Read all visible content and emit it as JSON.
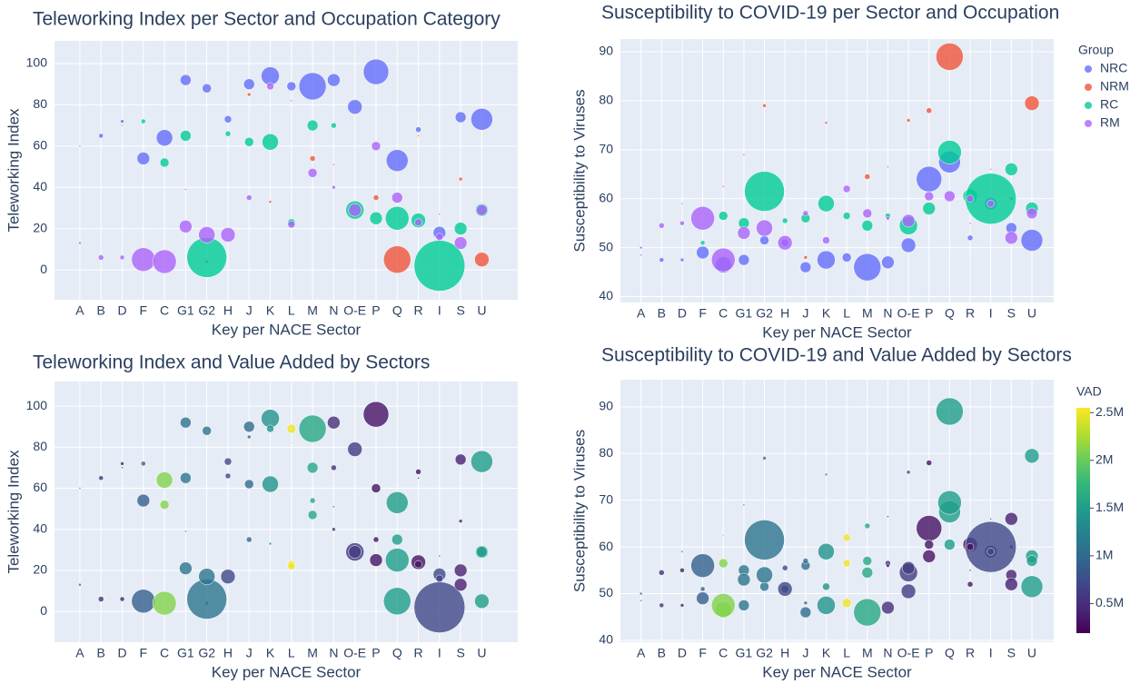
{
  "chart_data": [
    {
      "type": "scatter",
      "title": "Teleworking Index per Sector and Occupation Category",
      "x_label": "Key per NACE Sector",
      "y_label": "Teleworking Index",
      "categories": [
        "A",
        "B",
        "D",
        "F",
        "C",
        "G1",
        "G2",
        "H",
        "J",
        "K",
        "L",
        "M",
        "N",
        "O-E",
        "P",
        "Q",
        "R",
        "I",
        "S",
        "U"
      ],
      "ylim": [
        -14.5,
        111
      ],
      "yticks": [
        0,
        20,
        40,
        60,
        80,
        100
      ],
      "grid": true,
      "series": [
        {
          "name": "NRC",
          "color": "#636efa",
          "x": [
            "A",
            "B",
            "D",
            "F",
            "C",
            "G1",
            "G2",
            "H",
            "J",
            "K",
            "L",
            "M",
            "N",
            "O-E",
            "P",
            "Q",
            "R",
            "I",
            "S",
            "U"
          ],
          "values": [
            60,
            65,
            72,
            54,
            64,
            92,
            88,
            73,
            90,
            94,
            89,
            89,
            92,
            79,
            96,
            53,
            68,
            18,
            74,
            73
          ],
          "sizes": [
            1,
            2.5,
            2,
            7,
            9,
            6,
            5,
            4,
            6,
            10,
            5,
            15,
            7,
            8,
            14,
            12,
            3,
            7,
            6,
            12
          ]
        },
        {
          "name": "NRM",
          "color": "#ef553b",
          "x": [
            "G1",
            "G2",
            "J",
            "K",
            "L",
            "M",
            "N",
            "P",
            "Q",
            "R",
            "I",
            "S",
            "U"
          ],
          "values": [
            39,
            4,
            85,
            33,
            82,
            54,
            51,
            35,
            5,
            65,
            27,
            44,
            5
          ],
          "sizes": [
            1,
            2,
            2,
            1.5,
            1,
            3,
            1,
            3,
            15,
            1,
            1,
            2,
            8
          ]
        },
        {
          "name": "RC",
          "color": "#00cc96",
          "x": [
            "D",
            "F",
            "C",
            "G1",
            "G2",
            "H",
            "J",
            "K",
            "L",
            "M",
            "N",
            "O-E",
            "P",
            "Q",
            "R",
            "I",
            "S",
            "U"
          ],
          "values": [
            70,
            72,
            52,
            65,
            6,
            66,
            62,
            62,
            23,
            70,
            70,
            29,
            25,
            25,
            24,
            2,
            20,
            29
          ],
          "sizes": [
            1,
            2.5,
            5,
            6,
            22,
            3,
            5,
            9,
            4,
            6,
            3,
            10,
            7,
            13,
            8,
            28,
            7,
            7
          ]
        },
        {
          "name": "RM",
          "color": "#ab63fa",
          "x": [
            "A",
            "B",
            "D",
            "F",
            "C",
            "G1",
            "G2",
            "H",
            "J",
            "K",
            "L",
            "M",
            "N",
            "O-E",
            "P",
            "Q",
            "R",
            "I",
            "S",
            "U"
          ],
          "values": [
            13,
            6,
            6,
            5,
            4,
            21,
            17,
            17,
            35,
            89,
            22,
            47,
            40,
            29,
            60,
            35,
            23,
            16,
            13,
            29
          ],
          "sizes": [
            1.5,
            3,
            2.5,
            13,
            13,
            7,
            9,
            8,
            3,
            4,
            4,
            5,
            2,
            7,
            5,
            6,
            4,
            4,
            7,
            6
          ]
        }
      ]
    },
    {
      "type": "scatter",
      "title": "Susceptibility to COVID-19 per Sector and Occupation",
      "x_label": "Key per NACE Sector",
      "y_label": "Susceptibility to Viruses",
      "categories": [
        "A",
        "B",
        "D",
        "F",
        "C",
        "G1",
        "G2",
        "H",
        "J",
        "K",
        "L",
        "M",
        "N",
        "O-E",
        "P",
        "Q",
        "R",
        "I",
        "S",
        "U"
      ],
      "ylim": [
        38.8,
        92.6
      ],
      "yticks": [
        40,
        50,
        60,
        70,
        80,
        90
      ],
      "grid": true,
      "legend_title": "Group",
      "legend": "right",
      "series": [
        {
          "name": "NRC",
          "color": "#636efa",
          "x": [
            "A",
            "B",
            "D",
            "F",
            "C",
            "G1",
            "G2",
            "H",
            "J",
            "K",
            "L",
            "M",
            "N",
            "O-E",
            "P",
            "Q",
            "R",
            "I",
            "S",
            "U"
          ],
          "values": [
            48.5,
            47.5,
            47.5,
            49,
            46.5,
            47.5,
            51.5,
            51,
            46,
            47.5,
            48,
            46,
            47,
            50.5,
            64,
            67.5,
            52,
            59,
            54,
            51.5
          ],
          "sizes": [
            1,
            2.5,
            2,
            7,
            9,
            6,
            5,
            4,
            6,
            10,
            5,
            15,
            7,
            8,
            14,
            12,
            3,
            7,
            6,
            12
          ]
        },
        {
          "name": "NRM",
          "color": "#ef553b",
          "x": [
            "C",
            "G1",
            "G2",
            "J",
            "K",
            "M",
            "N",
            "O-E",
            "P",
            "Q",
            "R",
            "I",
            "S",
            "U"
          ],
          "values": [
            62.5,
            69,
            79,
            48,
            75.5,
            64.5,
            66.5,
            76,
            78,
            89,
            55,
            66,
            60,
            79.5
          ],
          "sizes": [
            1,
            1,
            2,
            2,
            1.5,
            3,
            1,
            2,
            3,
            15,
            1,
            1,
            2,
            8
          ]
        },
        {
          "name": "RC",
          "color": "#00cc96",
          "x": [
            "D",
            "F",
            "C",
            "G1",
            "G2",
            "H",
            "J",
            "K",
            "L",
            "M",
            "N",
            "O-E",
            "P",
            "Q",
            "R",
            "I",
            "S",
            "U"
          ],
          "values": [
            59,
            51,
            56.5,
            55,
            61.5,
            55.5,
            56,
            59,
            56.5,
            54.5,
            56.5,
            54.5,
            58,
            69.5,
            60.5,
            60,
            66,
            58
          ],
          "sizes": [
            1,
            2.5,
            5,
            6,
            22,
            3,
            5,
            9,
            4,
            6,
            3,
            10,
            7,
            13,
            8,
            28,
            7,
            7
          ]
        },
        {
          "name": "RM",
          "color": "#ab63fa",
          "x": [
            "A",
            "B",
            "D",
            "F",
            "C",
            "G1",
            "G2",
            "H",
            "J",
            "K",
            "L",
            "M",
            "N",
            "O-E",
            "P",
            "Q",
            "R",
            "I",
            "S",
            "U"
          ],
          "values": [
            50,
            54.5,
            55,
            56,
            47.5,
            53,
            54,
            51,
            57,
            51.5,
            62,
            57,
            56,
            55.5,
            60.5,
            60.5,
            60,
            59,
            52,
            57
          ],
          "sizes": [
            1.5,
            3,
            2.5,
            13,
            13,
            7,
            9,
            8,
            3,
            4,
            4,
            5,
            2,
            7,
            5,
            6,
            4,
            4,
            7,
            6
          ]
        }
      ]
    },
    {
      "type": "scatter",
      "title": "Teleworking Index and Value Added by Sectors",
      "x_label": "Key per NACE Sector",
      "y_label": "Teleworking Index",
      "categories": [
        "A",
        "B",
        "D",
        "F",
        "C",
        "G1",
        "G2",
        "H",
        "J",
        "K",
        "L",
        "M",
        "N",
        "O-E",
        "P",
        "Q",
        "R",
        "I",
        "S",
        "U"
      ],
      "ylim": [
        -15,
        112
      ],
      "yticks": [
        0,
        20,
        40,
        60,
        80,
        100
      ],
      "grid": true,
      "colorscale": "viridis",
      "x": [
        "A",
        "B",
        "D",
        "F",
        "C",
        "G1",
        "G2",
        "H",
        "J",
        "K",
        "L",
        "M",
        "N",
        "O-E",
        "P",
        "Q",
        "R",
        "I",
        "S",
        "U",
        "G1",
        "G2",
        "J",
        "K",
        "L",
        "M",
        "N",
        "P",
        "Q",
        "R",
        "I",
        "S",
        "U",
        "D",
        "F",
        "C",
        "G1",
        "G2",
        "H",
        "J",
        "K",
        "L",
        "M",
        "N",
        "O-E",
        "P",
        "Q",
        "R",
        "I",
        "S",
        "U",
        "A",
        "B",
        "D",
        "F",
        "C",
        "G1",
        "G2",
        "H",
        "J",
        "K",
        "L",
        "M",
        "N",
        "O-E",
        "P",
        "Q",
        "R",
        "I",
        "S",
        "U"
      ],
      "values": [
        60,
        65,
        72,
        54,
        64,
        92,
        88,
        73,
        90,
        94,
        89,
        89,
        92,
        79,
        96,
        53,
        68,
        18,
        74,
        73,
        39,
        4,
        85,
        33,
        82,
        54,
        51,
        35,
        5,
        65,
        27,
        44,
        5,
        70,
        72,
        52,
        65,
        6,
        66,
        62,
        62,
        23,
        70,
        70,
        29,
        25,
        25,
        24,
        2,
        20,
        29,
        13,
        6,
        6,
        5,
        4,
        21,
        17,
        17,
        35,
        89,
        22,
        47,
        40,
        29,
        60,
        35,
        23,
        16,
        13,
        29
      ],
      "sizes": [
        1,
        2.5,
        2,
        7,
        9,
        6,
        5,
        4,
        6,
        10,
        5,
        15,
        7,
        8,
        14,
        12,
        3,
        7,
        6,
        12,
        1,
        2,
        2,
        1.5,
        1,
        3,
        1,
        3,
        15,
        1,
        1,
        2,
        8,
        1,
        2.5,
        5,
        6,
        22,
        3,
        5,
        9,
        4,
        6,
        3,
        10,
        7,
        13,
        8,
        28,
        7,
        7,
        1.5,
        3,
        2.5,
        13,
        13,
        7,
        9,
        8,
        3,
        4,
        4,
        5,
        2,
        7,
        5,
        6,
        4,
        4,
        7,
        6
      ],
      "color_values": [
        1000000,
        500000,
        400000,
        900000,
        2100000,
        1100000,
        1100000,
        700000,
        1000000,
        1400000,
        2500000,
        1600000,
        500000,
        600000,
        300000,
        1500000,
        300000,
        700000,
        400000,
        1500000,
        1100000,
        1100000,
        1000000,
        1400000,
        2500000,
        1600000,
        500000,
        300000,
        1500000,
        300000,
        700000,
        400000,
        1500000,
        400000,
        900000,
        2100000,
        1100000,
        1100000,
        700000,
        1000000,
        1400000,
        2500000,
        1600000,
        500000,
        600000,
        300000,
        1500000,
        300000,
        700000,
        400000,
        1500000,
        1000000,
        500000,
        400000,
        900000,
        2100000,
        1100000,
        1100000,
        700000,
        1000000,
        1400000,
        2500000,
        1600000,
        500000,
        600000,
        300000,
        1500000,
        300000,
        700000,
        400000,
        1500000
      ]
    },
    {
      "type": "scatter",
      "title": "Susceptibility to COVID-19 and Value Added by Sectors",
      "x_label": "Key per NACE Sector",
      "y_label": "Susceptibility to Viruses",
      "categories": [
        "A",
        "B",
        "D",
        "F",
        "C",
        "G1",
        "G2",
        "H",
        "J",
        "K",
        "L",
        "M",
        "N",
        "O-E",
        "P",
        "Q",
        "R",
        "I",
        "S",
        "U"
      ],
      "ylim": [
        39.6,
        95.8
      ],
      "yticks": [
        40,
        50,
        60,
        70,
        80,
        90
      ],
      "grid": true,
      "colorscale": "viridis",
      "colorbar": {
        "title": "VAD",
        "clim": [
          190000,
          2550000
        ],
        "ticks": [
          {
            "value": 500000,
            "label": "0.5M"
          },
          {
            "value": 1000000,
            "label": "1M"
          },
          {
            "value": 1500000,
            "label": "1.5M"
          },
          {
            "value": 2000000,
            "label": "2M"
          },
          {
            "value": 2500000,
            "label": "2.5M"
          }
        ]
      },
      "x": [
        "A",
        "B",
        "D",
        "F",
        "C",
        "G1",
        "G2",
        "H",
        "J",
        "K",
        "L",
        "M",
        "N",
        "O-E",
        "P",
        "Q",
        "R",
        "I",
        "S",
        "U",
        "C",
        "G1",
        "G2",
        "J",
        "K",
        "M",
        "N",
        "O-E",
        "P",
        "Q",
        "R",
        "I",
        "S",
        "U",
        "D",
        "F",
        "C",
        "G1",
        "G2",
        "H",
        "J",
        "K",
        "L",
        "M",
        "N",
        "O-E",
        "P",
        "Q",
        "R",
        "I",
        "S",
        "U",
        "A",
        "B",
        "D",
        "F",
        "C",
        "G1",
        "G2",
        "H",
        "J",
        "K",
        "L",
        "M",
        "N",
        "O-E",
        "P",
        "Q",
        "R",
        "I",
        "S",
        "U"
      ],
      "values": [
        48.5,
        47.5,
        47.5,
        49,
        46.5,
        47.5,
        51.5,
        51,
        46,
        47.5,
        48,
        46,
        47,
        50.5,
        64,
        67.5,
        52,
        59,
        54,
        51.5,
        62.5,
        69,
        79,
        48,
        75.5,
        64.5,
        66.5,
        76,
        78,
        89,
        55,
        66,
        60,
        79.5,
        59,
        51,
        56.5,
        55,
        61.5,
        55.5,
        56,
        59,
        56.5,
        54.5,
        56.5,
        54.5,
        58,
        69.5,
        60.5,
        60,
        66,
        58,
        50,
        54.5,
        55,
        56,
        47.5,
        53,
        54,
        51,
        57,
        51.5,
        62,
        57,
        56,
        55.5,
        60.5,
        60.5,
        60,
        59,
        52,
        57
      ],
      "sizes": [
        1,
        2.5,
        2,
        7,
        9,
        6,
        5,
        4,
        6,
        10,
        5,
        15,
        7,
        8,
        14,
        12,
        3,
        7,
        6,
        12,
        1,
        1,
        2,
        2,
        1.5,
        3,
        1,
        2,
        3,
        15,
        1,
        1,
        2,
        8,
        1,
        2.5,
        5,
        6,
        22,
        3,
        5,
        9,
        4,
        6,
        3,
        10,
        7,
        13,
        8,
        28,
        7,
        7,
        1.5,
        3,
        2.5,
        13,
        13,
        7,
        9,
        8,
        3,
        4,
        4,
        5,
        2,
        7,
        5,
        6,
        4,
        4,
        7,
        6
      ],
      "color_values": [
        1000000,
        500000,
        400000,
        900000,
        2100000,
        1100000,
        1100000,
        700000,
        1000000,
        1400000,
        2500000,
        1600000,
        500000,
        600000,
        300000,
        1500000,
        300000,
        700000,
        400000,
        1500000,
        2100000,
        1100000,
        1100000,
        1000000,
        1400000,
        1600000,
        500000,
        600000,
        300000,
        1500000,
        300000,
        700000,
        400000,
        1500000,
        400000,
        900000,
        2100000,
        1100000,
        1100000,
        700000,
        1000000,
        1400000,
        2500000,
        1600000,
        500000,
        600000,
        300000,
        1500000,
        300000,
        700000,
        400000,
        1500000,
        1000000,
        500000,
        400000,
        900000,
        2100000,
        1100000,
        1100000,
        700000,
        1000000,
        1400000,
        2500000,
        1600000,
        500000,
        600000,
        300000,
        1500000,
        300000,
        700000,
        400000,
        1500000
      ]
    }
  ]
}
